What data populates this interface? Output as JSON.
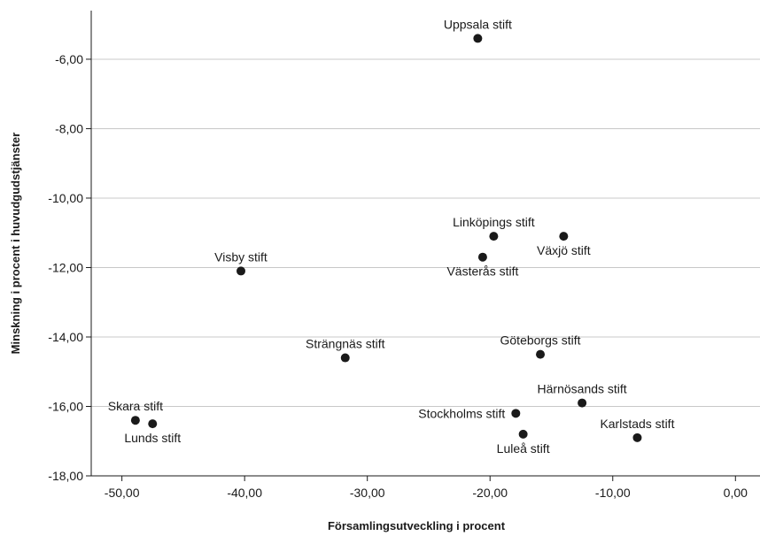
{
  "chart_data": {
    "type": "scatter",
    "title": "",
    "xlabel": "Församlingsutveckling i procent",
    "ylabel": "Minskning i procent i huvudgudstjänster",
    "xlim": [
      -52.5,
      2.0
    ],
    "ylim": [
      -18.0,
      -4.6
    ],
    "xticks": [
      -50,
      -40,
      -30,
      -20,
      -10,
      0
    ],
    "xtick_labels": [
      "-50,00",
      "-40,00",
      "-30,00",
      "-20,00",
      "-10,00",
      "0,00"
    ],
    "yticks": [
      -18,
      -16,
      -14,
      -12,
      -10,
      -8,
      -6
    ],
    "ytick_labels": [
      "-18,00",
      "-16,00",
      "-14,00",
      "-12,00",
      "-10,00",
      "-8,00",
      "-6,00"
    ],
    "grid": "horizontal",
    "marker_color": "#1a1a1a",
    "grid_color": "#c8c8c8",
    "points": [
      {
        "label": "Uppsala stift",
        "x": -21.0,
        "y": -5.4,
        "label_pos": "above"
      },
      {
        "label": "Linköpings stift",
        "x": -19.7,
        "y": -11.1,
        "label_pos": "above"
      },
      {
        "label": "Växjö stift",
        "x": -14.0,
        "y": -11.1,
        "label_pos": "below"
      },
      {
        "label": "Västerås stift",
        "x": -20.6,
        "y": -11.7,
        "label_pos": "below"
      },
      {
        "label": "Visby stift",
        "x": -40.3,
        "y": -12.1,
        "label_pos": "above"
      },
      {
        "label": "Strängnäs stift",
        "x": -31.8,
        "y": -14.6,
        "label_pos": "above"
      },
      {
        "label": "Göteborgs stift",
        "x": -15.9,
        "y": -14.5,
        "label_pos": "above"
      },
      {
        "label": "Härnösands stift",
        "x": -12.5,
        "y": -15.9,
        "label_pos": "above"
      },
      {
        "label": "Skara stift",
        "x": -48.9,
        "y": -16.4,
        "label_pos": "above"
      },
      {
        "label": "Lunds stift",
        "x": -47.5,
        "y": -16.5,
        "label_pos": "below"
      },
      {
        "label": "Stockholms stift",
        "x": -17.9,
        "y": -16.2,
        "label_pos": "left"
      },
      {
        "label": "Luleå stift",
        "x": -17.3,
        "y": -16.8,
        "label_pos": "below"
      },
      {
        "label": "Karlstads stift",
        "x": -8.0,
        "y": -16.9,
        "label_pos": "above"
      }
    ]
  }
}
